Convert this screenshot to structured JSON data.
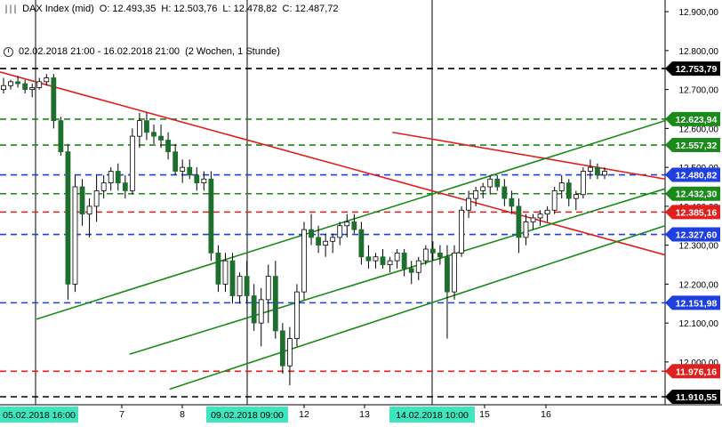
{
  "header": {
    "instrument": "DAX Index (mid)",
    "open": "O: 12.493,35",
    "high": "H: 12.503,76",
    "low": "L: 12.478,82",
    "close": "C: 12.487,72",
    "range": "02.02.2018 21:00 - 16.02.2018 21:00",
    "period": "(2 Wochen, 1 Stunde)"
  },
  "chart_data": {
    "type": "candlestick",
    "yticks": [
      "12.900,00",
      "12.800,00",
      "12.700,00",
      "12.600,00",
      "12.500,00",
      "12.400,00",
      "12.300,00",
      "12.200,00",
      "12.100,00",
      "12.000,00"
    ],
    "xticks": [
      "7",
      "8",
      "12",
      "13",
      "15",
      "16"
    ],
    "xticks_highlighted": [
      "05.02.2018 16:00",
      "09.02.2018 09:00",
      "14.02.2018 10:00"
    ],
    "horizontal_levels": [
      {
        "label": "12.753,79",
        "value": 12753.79,
        "color": "#000000"
      },
      {
        "label": "12.623,94",
        "value": 12623.94,
        "color": "#1a8a1a"
      },
      {
        "label": "12.557,32",
        "value": 12557.32,
        "color": "#1a8a1a"
      },
      {
        "label": "12.480,82",
        "value": 12480.82,
        "color": "#1f3fe0"
      },
      {
        "label": "12.432,30",
        "value": 12432.3,
        "color": "#1a8a1a"
      },
      {
        "label": "12.385,16",
        "value": 12385.16,
        "color": "#e01f1f"
      },
      {
        "label": "12.327,60",
        "value": 12327.6,
        "color": "#1f3fe0"
      },
      {
        "label": "12.151,98",
        "value": 12151.98,
        "color": "#1f3fe0"
      },
      {
        "label": "11.976,16",
        "value": 11976.16,
        "color": "#e01f1f"
      },
      {
        "label": "11.910,55",
        "value": 11910.55,
        "color": "#000000"
      }
    ],
    "trendlines": [
      {
        "color": "#e01f1f",
        "from": [
          0.0,
          12745
        ],
        "to": [
          1.0,
          12275
        ]
      },
      {
        "color": "#e01f1f",
        "from": [
          0.59,
          12590
        ],
        "to": [
          1.0,
          12470
        ]
      },
      {
        "color": "#1a8a1a",
        "from": [
          0.055,
          12110
        ],
        "to": [
          1.0,
          12620
        ]
      },
      {
        "color": "#1a8a1a",
        "from": [
          0.195,
          12020
        ],
        "to": [
          1.0,
          12445
        ]
      },
      {
        "color": "#1a8a1a",
        "from": [
          0.255,
          11930
        ],
        "to": [
          1.0,
          12350
        ]
      }
    ],
    "candles": [
      [
        12700,
        12730,
        12690,
        12710
      ],
      [
        12710,
        12725,
        12700,
        12720
      ],
      [
        12720,
        12735,
        12705,
        12715
      ],
      [
        12715,
        12725,
        12690,
        12700
      ],
      [
        12700,
        12715,
        12680,
        12705
      ],
      [
        12705,
        12730,
        12700,
        12720
      ],
      [
        12720,
        12740,
        12710,
        12730
      ],
      [
        12730,
        12740,
        12600,
        12620
      ],
      [
        12620,
        12630,
        12530,
        12540
      ],
      [
        12540,
        12560,
        12160,
        12200
      ],
      [
        12200,
        12480,
        12180,
        12450
      ],
      [
        12450,
        12470,
        12350,
        12380
      ],
      [
        12380,
        12420,
        12320,
        12400
      ],
      [
        12400,
        12480,
        12360,
        12440
      ],
      [
        12440,
        12480,
        12420,
        12460
      ],
      [
        12460,
        12500,
        12440,
        12490
      ],
      [
        12490,
        12510,
        12440,
        12460
      ],
      [
        12460,
        12480,
        12420,
        12440
      ],
      [
        12440,
        12600,
        12430,
        12580
      ],
      [
        12580,
        12640,
        12550,
        12620
      ],
      [
        12620,
        12640,
        12570,
        12590
      ],
      [
        12590,
        12610,
        12560,
        12580
      ],
      [
        12580,
        12610,
        12550,
        12570
      ],
      [
        12570,
        12590,
        12520,
        12540
      ],
      [
        12540,
        12560,
        12480,
        12490
      ],
      [
        12490,
        12520,
        12460,
        12500
      ],
      [
        12500,
        12520,
        12470,
        12480
      ],
      [
        12480,
        12500,
        12440,
        12460
      ],
      [
        12460,
        12490,
        12440,
        12470
      ],
      [
        12470,
        12490,
        12260,
        12280
      ],
      [
        12280,
        12300,
        12180,
        12200
      ],
      [
        12200,
        12280,
        12180,
        12260
      ],
      [
        12260,
        12280,
        12150,
        12170
      ],
      [
        12170,
        12230,
        12150,
        12220
      ],
      [
        12220,
        12260,
        12150,
        12170
      ],
      [
        12170,
        12200,
        12080,
        12100
      ],
      [
        12100,
        12190,
        12040,
        12160
      ],
      [
        12160,
        12250,
        12100,
        12220
      ],
      [
        12220,
        12260,
        12060,
        12080
      ],
      [
        12080,
        12100,
        11970,
        11990
      ],
      [
        11990,
        12090,
        11940,
        12060
      ],
      [
        12060,
        12200,
        12040,
        12180
      ],
      [
        12180,
        12360,
        12160,
        12340
      ],
      [
        12340,
        12380,
        12300,
        12320
      ],
      [
        12320,
        12350,
        12280,
        12300
      ],
      [
        12300,
        12330,
        12270,
        12310
      ],
      [
        12310,
        12330,
        12280,
        12320
      ],
      [
        12320,
        12360,
        12300,
        12350
      ],
      [
        12350,
        12380,
        12320,
        12360
      ],
      [
        12360,
        12380,
        12330,
        12340
      ],
      [
        12340,
        12360,
        12250,
        12270
      ],
      [
        12270,
        12300,
        12240,
        12260
      ],
      [
        12260,
        12280,
        12240,
        12270
      ],
      [
        12270,
        12290,
        12240,
        12250
      ],
      [
        12250,
        12270,
        12230,
        12260
      ],
      [
        12260,
        12290,
        12240,
        12280
      ],
      [
        12280,
        12290,
        12220,
        12240
      ],
      [
        12240,
        12260,
        12200,
        12230
      ],
      [
        12230,
        12270,
        12210,
        12260
      ],
      [
        12260,
        12300,
        12250,
        12290
      ],
      [
        12290,
        12310,
        12260,
        12280
      ],
      [
        12280,
        12300,
        12250,
        12270
      ],
      [
        12270,
        12300,
        12060,
        12180
      ],
      [
        12180,
        12300,
        12160,
        12280
      ],
      [
        12280,
        12400,
        12270,
        12390
      ],
      [
        12390,
        12440,
        12370,
        12420
      ],
      [
        12420,
        12450,
        12400,
        12440
      ],
      [
        12440,
        12460,
        12420,
        12450
      ],
      [
        12450,
        12480,
        12430,
        12470
      ],
      [
        12470,
        12480,
        12440,
        12450
      ],
      [
        12450,
        12470,
        12400,
        12420
      ],
      [
        12420,
        12440,
        12380,
        12400
      ],
      [
        12400,
        12420,
        12280,
        12320
      ],
      [
        12320,
        12380,
        12300,
        12360
      ],
      [
        12360,
        12380,
        12340,
        12370
      ],
      [
        12370,
        12390,
        12350,
        12380
      ],
      [
        12380,
        12400,
        12360,
        12390
      ],
      [
        12390,
        12450,
        12380,
        12440
      ],
      [
        12440,
        12480,
        12420,
        12460
      ],
      [
        12460,
        12470,
        12400,
        12420
      ],
      [
        12420,
        12440,
        12390,
        12430
      ],
      [
        12430,
        12500,
        12420,
        12490
      ],
      [
        12490,
        12520,
        12470,
        12500
      ],
      [
        12500,
        12510,
        12470,
        12480
      ],
      [
        12480,
        12500,
        12470,
        12490
      ]
    ]
  }
}
